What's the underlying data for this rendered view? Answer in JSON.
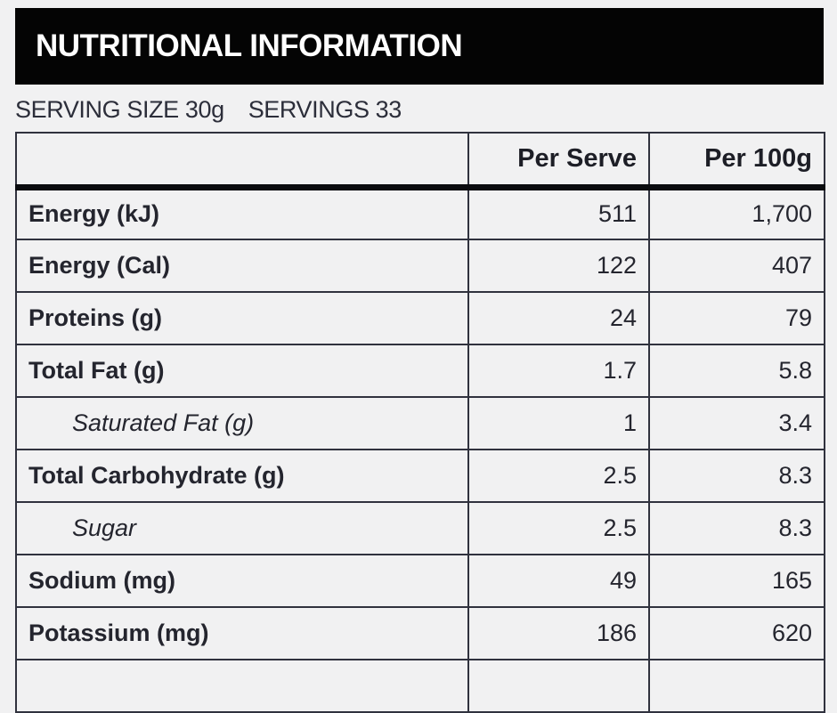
{
  "page": {
    "background_color": "#f1f1f2"
  },
  "header": {
    "title": "NUTRITIONAL INFORMATION",
    "bar_color": "#040404",
    "text_color": "#ffffff"
  },
  "serving_info": {
    "serving_size_text": "SERVING SIZE 30g",
    "servings_text": "SERVINGS 33"
  },
  "table": {
    "border_color": "#30323e",
    "header_rule_color": "#0b0c10",
    "columns": [
      "",
      "Per Serve",
      "Per 100g"
    ],
    "rows": [
      {
        "label": "Energy (kJ)",
        "per_serve": "511",
        "per_100g": "1,700",
        "sub": false
      },
      {
        "label": "Energy (Cal)",
        "per_serve": "122",
        "per_100g": "407",
        "sub": false
      },
      {
        "label": "Proteins (g)",
        "per_serve": "24",
        "per_100g": "79",
        "sub": false
      },
      {
        "label": "Total Fat (g)",
        "per_serve": "1.7",
        "per_100g": "5.8",
        "sub": false
      },
      {
        "label": "Saturated Fat (g)",
        "per_serve": "1",
        "per_100g": "3.4",
        "sub": true
      },
      {
        "label": "Total Carbohydrate (g)",
        "per_serve": "2.5",
        "per_100g": "8.3",
        "sub": false
      },
      {
        "label": "Sugar",
        "per_serve": "2.5",
        "per_100g": "8.3",
        "sub": true
      },
      {
        "label": "Sodium (mg)",
        "per_serve": "49",
        "per_100g": "165",
        "sub": false
      },
      {
        "label": "Potassium (mg)",
        "per_serve": "186",
        "per_100g": "620",
        "sub": false
      }
    ]
  }
}
